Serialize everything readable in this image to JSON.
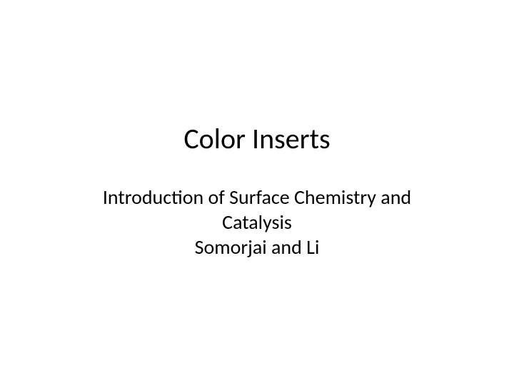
{
  "slide": {
    "title": "Color Inserts",
    "subtitle_line1": "Introduction of Surface Chemistry and",
    "subtitle_line2": "Catalysis",
    "subtitle_line3": "Somorjai and Li",
    "background_color": "#ffffff",
    "text_color": "#000000",
    "title_fontsize": 40,
    "subtitle_fontsize": 28
  }
}
